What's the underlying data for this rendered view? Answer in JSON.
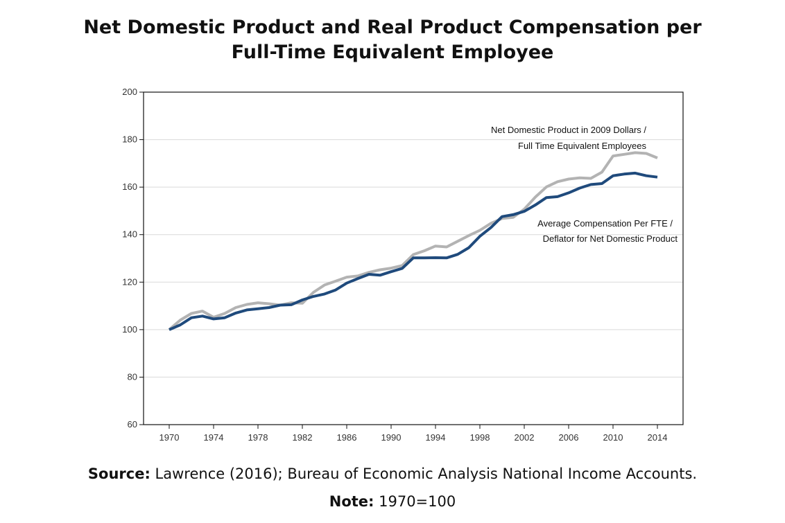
{
  "chart_data": {
    "type": "line",
    "title_line1": "Net Domestic Product and Real Product Compensation per",
    "title_line2": "Full-Time Equivalent Employee",
    "xlabel": "",
    "ylabel": "",
    "ylim": [
      60,
      200
    ],
    "xlim": [
      1970,
      2014
    ],
    "yticks": [
      60,
      80,
      100,
      120,
      140,
      160,
      180,
      200
    ],
    "xticks": [
      1970,
      1974,
      1978,
      1982,
      1986,
      1990,
      1994,
      1998,
      2002,
      2006,
      2010,
      2014
    ],
    "grid": "horizontal",
    "x": [
      1970,
      1971,
      1972,
      1973,
      1974,
      1975,
      1976,
      1977,
      1978,
      1979,
      1980,
      1981,
      1982,
      1983,
      1984,
      1985,
      1986,
      1987,
      1988,
      1989,
      1990,
      1991,
      1992,
      1993,
      1994,
      1995,
      1996,
      1997,
      1998,
      1999,
      2000,
      2001,
      2002,
      2003,
      2004,
      2005,
      2006,
      2007,
      2008,
      2009,
      2010,
      2011,
      2012,
      2013,
      2014
    ],
    "series": [
      {
        "name": "Net Domestic Product in 2009 Dollars / Full Time Equivalent Employees",
        "label_line1": "Net Domestic Product in 2009 Dollars /",
        "label_line2": "Full Time Equivalent Employees",
        "color": "#b3b3b3",
        "values": [
          100,
          104,
          106.8,
          107.8,
          105.2,
          106.8,
          109.3,
          110.6,
          111.3,
          110.9,
          110.3,
          111.3,
          111.1,
          115.7,
          118.8,
          120.4,
          122.1,
          122.6,
          124.1,
          125.2,
          125.9,
          127,
          131.6,
          133.2,
          135.2,
          134.8,
          137.2,
          139.6,
          141.8,
          144.8,
          146.8,
          147.3,
          150.7,
          155.8,
          160.1,
          162.3,
          163.4,
          163.9,
          163.7,
          166.3,
          173.1,
          173.8,
          174.5,
          174.2,
          172.3
        ]
      },
      {
        "name": "Average Compensation Per FTE / Deflator for Net Domestic Product",
        "label_line1": "Average Compensation Per FTE /",
        "label_line2": "Deflator for Net Domestic Product",
        "color": "#1f4a7c",
        "values": [
          100,
          102,
          105,
          105.7,
          104.5,
          105,
          107,
          108.3,
          108.8,
          109.3,
          110.3,
          110.5,
          112.5,
          114,
          115,
          116.7,
          119.6,
          121.5,
          123.3,
          122.9,
          124.4,
          125.8,
          130.2,
          130.2,
          130.3,
          130.2,
          131.7,
          134.5,
          139.3,
          143,
          147.6,
          148.4,
          149.8,
          152.5,
          155.6,
          156,
          157.6,
          159.6,
          161.1,
          161.5,
          164.8,
          165.5,
          165.9,
          164.8,
          164.2
        ]
      }
    ]
  },
  "footer": {
    "source_label": "Source:",
    "source_text": " Lawrence (2016); Bureau of Economic Analysis National Income Accounts.",
    "note_label": "Note:",
    "note_text": " 1970=100"
  }
}
